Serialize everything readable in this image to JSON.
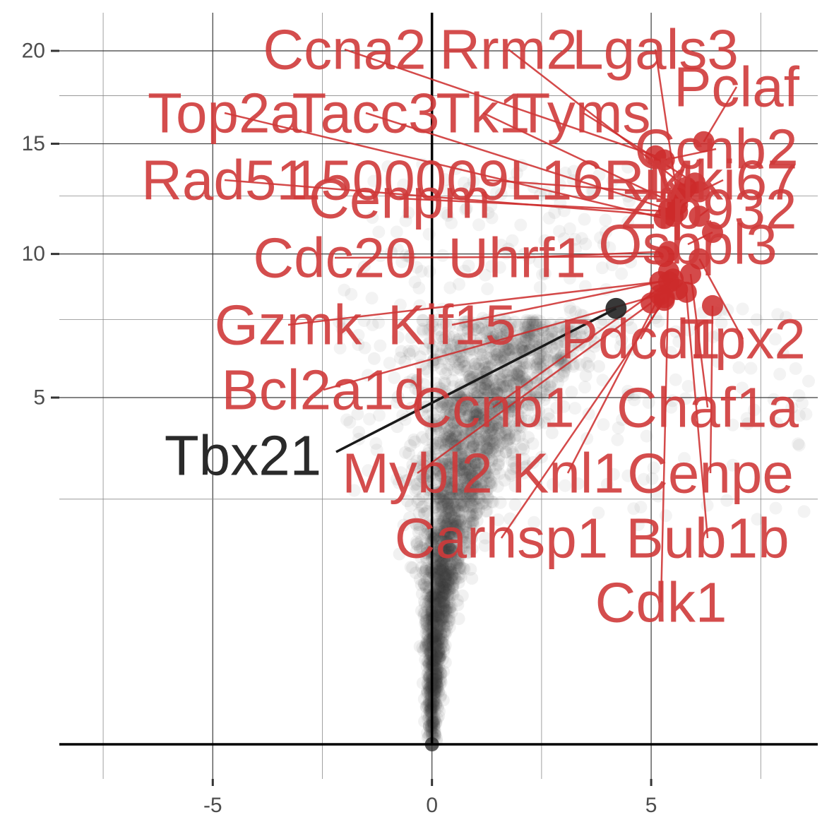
{
  "chart_data": {
    "type": "scatter",
    "title": "",
    "xlabel": "",
    "ylabel": "",
    "xlim": [
      -8.5,
      8.8
    ],
    "y_scale": "sqrt",
    "ylim": [
      0,
      21
    ],
    "grid": true,
    "x_ticks": [
      -5,
      0,
      5
    ],
    "y_ticks": [
      5,
      10,
      15,
      20
    ],
    "x_tick_labels": [
      "-5",
      "0",
      "5"
    ],
    "y_tick_labels": [
      "5",
      "10",
      "15",
      "20"
    ],
    "colors": {
      "background_points": "#333333",
      "highlight": "#cc2a2a",
      "highlight_label": "#cf3a3a",
      "reference_point": "#222222",
      "reference_label": "#2a2a2a"
    },
    "highlighted_genes": [
      {
        "name": "Ccna2",
        "x": 5.1,
        "y": 14.4
      },
      {
        "name": "Rrm2",
        "x": 5.8,
        "y": 12.9
      },
      {
        "name": "Lgals3",
        "x": 5.6,
        "y": 12.4
      },
      {
        "name": "Pclaf",
        "x": 6.2,
        "y": 15.1
      },
      {
        "name": "Top2a",
        "x": 5.3,
        "y": 11.5
      },
      {
        "name": "Tacc3",
        "x": 5.4,
        "y": 11.9
      },
      {
        "name": "Tk1",
        "x": 5.6,
        "y": 12.1
      },
      {
        "name": "Tyms",
        "x": 6.0,
        "y": 13.1
      },
      {
        "name": "Ccnb2",
        "x": 5.3,
        "y": 14.2
      },
      {
        "name": "Rad51",
        "x": 5.5,
        "y": 11.6
      },
      {
        "name": "1500009L16Rik",
        "x": 5.7,
        "y": 12.6
      },
      {
        "name": "Mki67",
        "x": 6.1,
        "y": 12.7
      },
      {
        "name": "Cenpm",
        "x": 5.6,
        "y": 11.8
      },
      {
        "name": "Zfp932",
        "x": 6.1,
        "y": 11.6
      },
      {
        "name": "Osbpl3",
        "x": 6.4,
        "y": 10.9
      },
      {
        "name": "Cdc20",
        "x": 5.3,
        "y": 9.9
      },
      {
        "name": "Uhrf1",
        "x": 5.4,
        "y": 10.1
      },
      {
        "name": "Gzmk",
        "x": 5.2,
        "y": 8.9
      },
      {
        "name": "Kif15",
        "x": 5.5,
        "y": 9.0
      },
      {
        "name": "Tpx2",
        "x": 6.1,
        "y": 9.8
      },
      {
        "name": "Pdcd1",
        "x": 5.3,
        "y": 8.3
      },
      {
        "name": "Bcl2a1d",
        "x": 5.6,
        "y": 8.6
      },
      {
        "name": "Ccnb1",
        "x": 5.4,
        "y": 8.9
      },
      {
        "name": "Chaf1a",
        "x": 5.9,
        "y": 9.2
      },
      {
        "name": "Mybl2",
        "x": 5.0,
        "y": 8.1
      },
      {
        "name": "Knl1",
        "x": 5.2,
        "y": 8.4
      },
      {
        "name": "Cenpe",
        "x": 6.4,
        "y": 8.0
      },
      {
        "name": "Carhsp1",
        "x": 5.3,
        "y": 8.2
      },
      {
        "name": "Bub1b",
        "x": 5.8,
        "y": 8.5
      },
      {
        "name": "Cdk1",
        "x": 5.4,
        "y": 9.3
      }
    ],
    "reference_gene": {
      "name": "Tbx21",
      "x": 4.2,
      "y": 7.9
    }
  }
}
